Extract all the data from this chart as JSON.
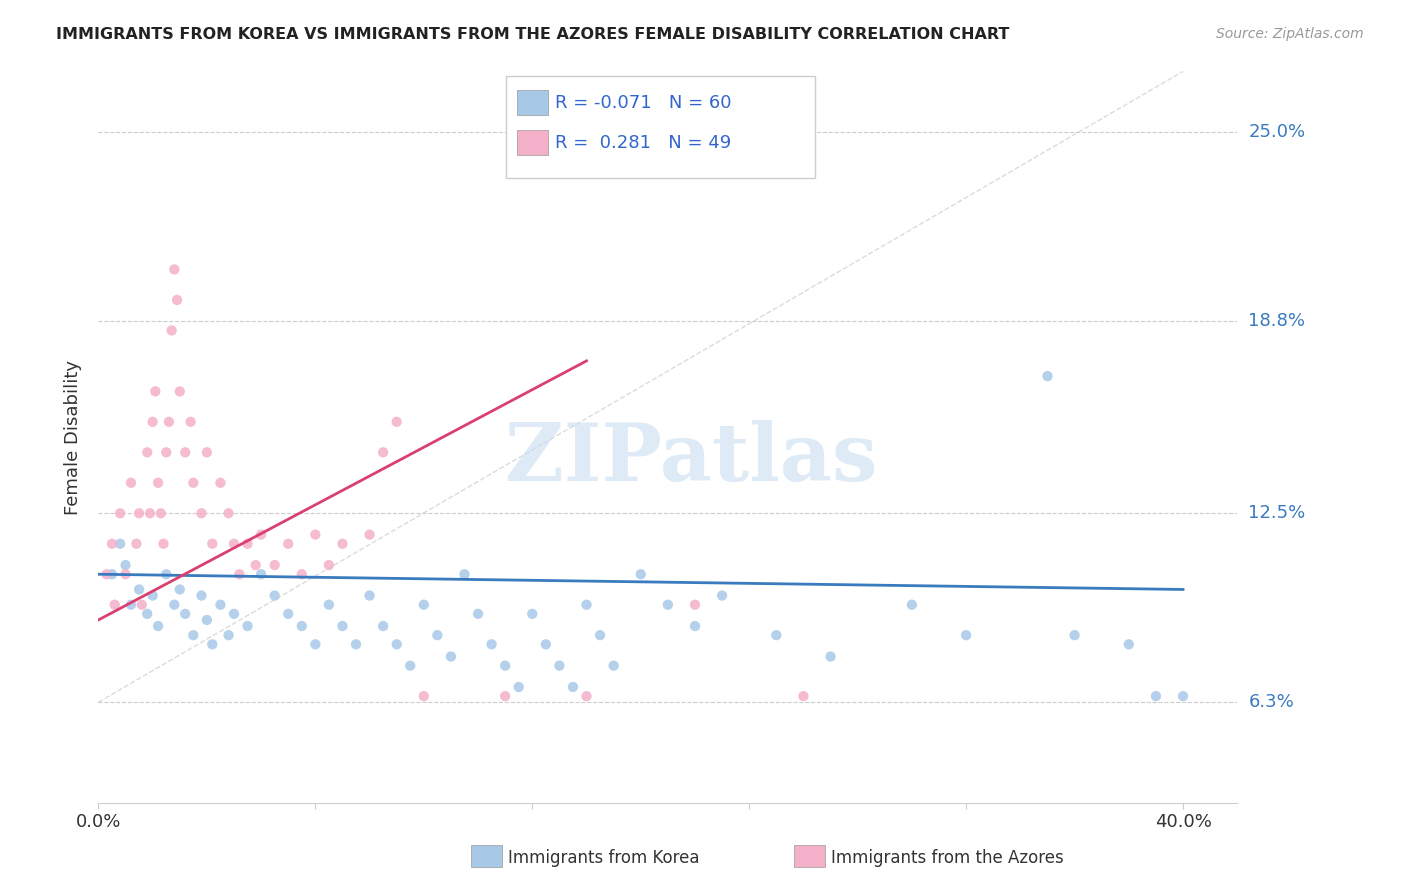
{
  "title": "IMMIGRANTS FROM KOREA VS IMMIGRANTS FROM THE AZORES FEMALE DISABILITY CORRELATION CHART",
  "source": "Source: ZipAtlas.com",
  "ylabel": "Female Disability",
  "xlim": [
    0.0,
    0.42
  ],
  "ylim": [
    0.03,
    0.27
  ],
  "ytick_vals": [
    0.063,
    0.125,
    0.188,
    0.25
  ],
  "ytick_labels": [
    "6.3%",
    "12.5%",
    "18.8%",
    "25.0%"
  ],
  "xtick_vals": [
    0.0,
    0.08,
    0.16,
    0.24,
    0.32,
    0.4
  ],
  "xtick_labels": [
    "0.0%",
    "",
    "",
    "",
    "",
    "40.0%"
  ],
  "korea_color": "#a8c8e8",
  "azores_color": "#f4b0c8",
  "korea_line_color": "#3a7abf",
  "azores_line_color": "#d94070",
  "grid_color": "#cccccc",
  "ref_line_color": "#cccccc",
  "R_korea": -0.071,
  "N_korea": 60,
  "R_azores": 0.281,
  "N_azores": 49,
  "legend_R_color": "#3366cc",
  "watermark": "ZIPatlas",
  "watermark_color": "#c8ddf0",
  "korea_scatter": [
    [
      0.005,
      0.105
    ],
    [
      0.008,
      0.115
    ],
    [
      0.01,
      0.108
    ],
    [
      0.012,
      0.095
    ],
    [
      0.015,
      0.1
    ],
    [
      0.018,
      0.092
    ],
    [
      0.02,
      0.098
    ],
    [
      0.022,
      0.088
    ],
    [
      0.025,
      0.105
    ],
    [
      0.028,
      0.095
    ],
    [
      0.03,
      0.1
    ],
    [
      0.032,
      0.092
    ],
    [
      0.035,
      0.085
    ],
    [
      0.038,
      0.098
    ],
    [
      0.04,
      0.09
    ],
    [
      0.042,
      0.082
    ],
    [
      0.045,
      0.095
    ],
    [
      0.048,
      0.085
    ],
    [
      0.05,
      0.092
    ],
    [
      0.055,
      0.088
    ],
    [
      0.06,
      0.105
    ],
    [
      0.065,
      0.098
    ],
    [
      0.07,
      0.092
    ],
    [
      0.075,
      0.088
    ],
    [
      0.08,
      0.082
    ],
    [
      0.085,
      0.095
    ],
    [
      0.09,
      0.088
    ],
    [
      0.095,
      0.082
    ],
    [
      0.1,
      0.098
    ],
    [
      0.105,
      0.088
    ],
    [
      0.11,
      0.082
    ],
    [
      0.115,
      0.075
    ],
    [
      0.12,
      0.095
    ],
    [
      0.125,
      0.085
    ],
    [
      0.13,
      0.078
    ],
    [
      0.135,
      0.105
    ],
    [
      0.14,
      0.092
    ],
    [
      0.145,
      0.082
    ],
    [
      0.15,
      0.075
    ],
    [
      0.155,
      0.068
    ],
    [
      0.16,
      0.092
    ],
    [
      0.165,
      0.082
    ],
    [
      0.17,
      0.075
    ],
    [
      0.175,
      0.068
    ],
    [
      0.18,
      0.095
    ],
    [
      0.185,
      0.085
    ],
    [
      0.19,
      0.075
    ],
    [
      0.2,
      0.105
    ],
    [
      0.21,
      0.095
    ],
    [
      0.22,
      0.088
    ],
    [
      0.23,
      0.098
    ],
    [
      0.25,
      0.085
    ],
    [
      0.27,
      0.078
    ],
    [
      0.3,
      0.095
    ],
    [
      0.32,
      0.085
    ],
    [
      0.35,
      0.17
    ],
    [
      0.36,
      0.085
    ],
    [
      0.38,
      0.082
    ],
    [
      0.39,
      0.065
    ],
    [
      0.4,
      0.065
    ]
  ],
  "azores_scatter": [
    [
      0.003,
      0.105
    ],
    [
      0.005,
      0.115
    ],
    [
      0.006,
      0.095
    ],
    [
      0.008,
      0.125
    ],
    [
      0.01,
      0.105
    ],
    [
      0.012,
      0.135
    ],
    [
      0.014,
      0.115
    ],
    [
      0.015,
      0.125
    ],
    [
      0.016,
      0.095
    ],
    [
      0.018,
      0.145
    ],
    [
      0.019,
      0.125
    ],
    [
      0.02,
      0.155
    ],
    [
      0.021,
      0.165
    ],
    [
      0.022,
      0.135
    ],
    [
      0.023,
      0.125
    ],
    [
      0.024,
      0.115
    ],
    [
      0.025,
      0.145
    ],
    [
      0.026,
      0.155
    ],
    [
      0.027,
      0.185
    ],
    [
      0.028,
      0.205
    ],
    [
      0.029,
      0.195
    ],
    [
      0.03,
      0.165
    ],
    [
      0.032,
      0.145
    ],
    [
      0.034,
      0.155
    ],
    [
      0.035,
      0.135
    ],
    [
      0.038,
      0.125
    ],
    [
      0.04,
      0.145
    ],
    [
      0.042,
      0.115
    ],
    [
      0.045,
      0.135
    ],
    [
      0.048,
      0.125
    ],
    [
      0.05,
      0.115
    ],
    [
      0.052,
      0.105
    ],
    [
      0.055,
      0.115
    ],
    [
      0.058,
      0.108
    ],
    [
      0.06,
      0.118
    ],
    [
      0.065,
      0.108
    ],
    [
      0.07,
      0.115
    ],
    [
      0.075,
      0.105
    ],
    [
      0.08,
      0.118
    ],
    [
      0.085,
      0.108
    ],
    [
      0.09,
      0.115
    ],
    [
      0.1,
      0.118
    ],
    [
      0.105,
      0.145
    ],
    [
      0.11,
      0.155
    ],
    [
      0.12,
      0.065
    ],
    [
      0.15,
      0.065
    ],
    [
      0.18,
      0.065
    ],
    [
      0.22,
      0.095
    ],
    [
      0.26,
      0.065
    ]
  ]
}
